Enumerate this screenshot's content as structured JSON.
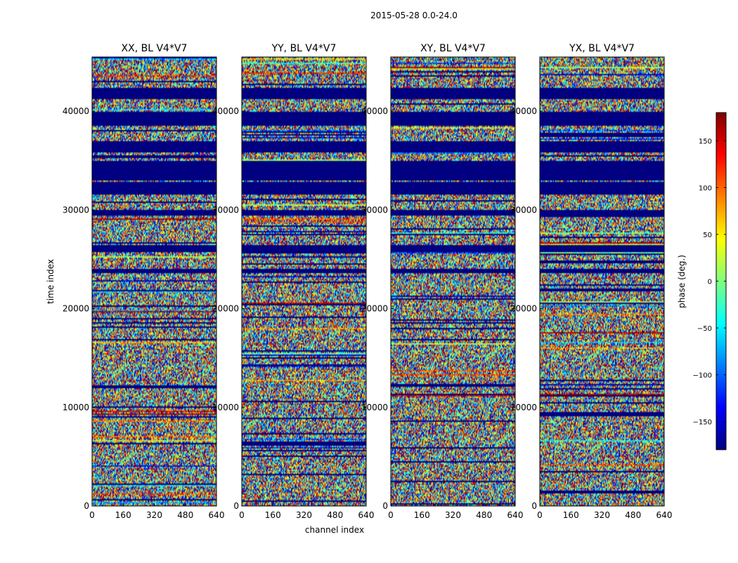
{
  "chart_data": {
    "type": "heatmap",
    "suptitle": "2015-05-28 0.0-24.0",
    "xlabel": "channel index",
    "ylabel": "time index",
    "xlim": [
      0,
      640
    ],
    "ylim": [
      0,
      45500
    ],
    "xticks": [
      0,
      160,
      320,
      480,
      640
    ],
    "yticks": [
      0,
      10000,
      20000,
      30000,
      40000
    ],
    "colorbar": {
      "label": "phase (deg.)",
      "min": -180,
      "max": 180,
      "ticks": [
        150,
        100,
        50,
        0,
        -50,
        -100,
        -150
      ],
      "colormap": "jet",
      "colors": [
        "#00007f",
        "#0000ff",
        "#007fff",
        "#00ffff",
        "#7fff7f",
        "#ffff00",
        "#ff7f00",
        "#ff0000",
        "#7f0000"
      ]
    },
    "panels": [
      {
        "title": "XX, BL V4*V7"
      },
      {
        "title": "YY, BL V4*V7"
      },
      {
        "title": "XY, BL V4*V7"
      },
      {
        "title": "YX, BL V4*V7"
      }
    ],
    "flagged_time_ranges": [
      [
        41200,
        42400
      ],
      [
        38600,
        40000
      ],
      [
        35800,
        37000
      ],
      [
        33000,
        35000
      ],
      [
        31500,
        32800
      ],
      [
        29500,
        30000
      ],
      [
        25800,
        26500
      ],
      [
        23600,
        24000
      ]
    ]
  }
}
